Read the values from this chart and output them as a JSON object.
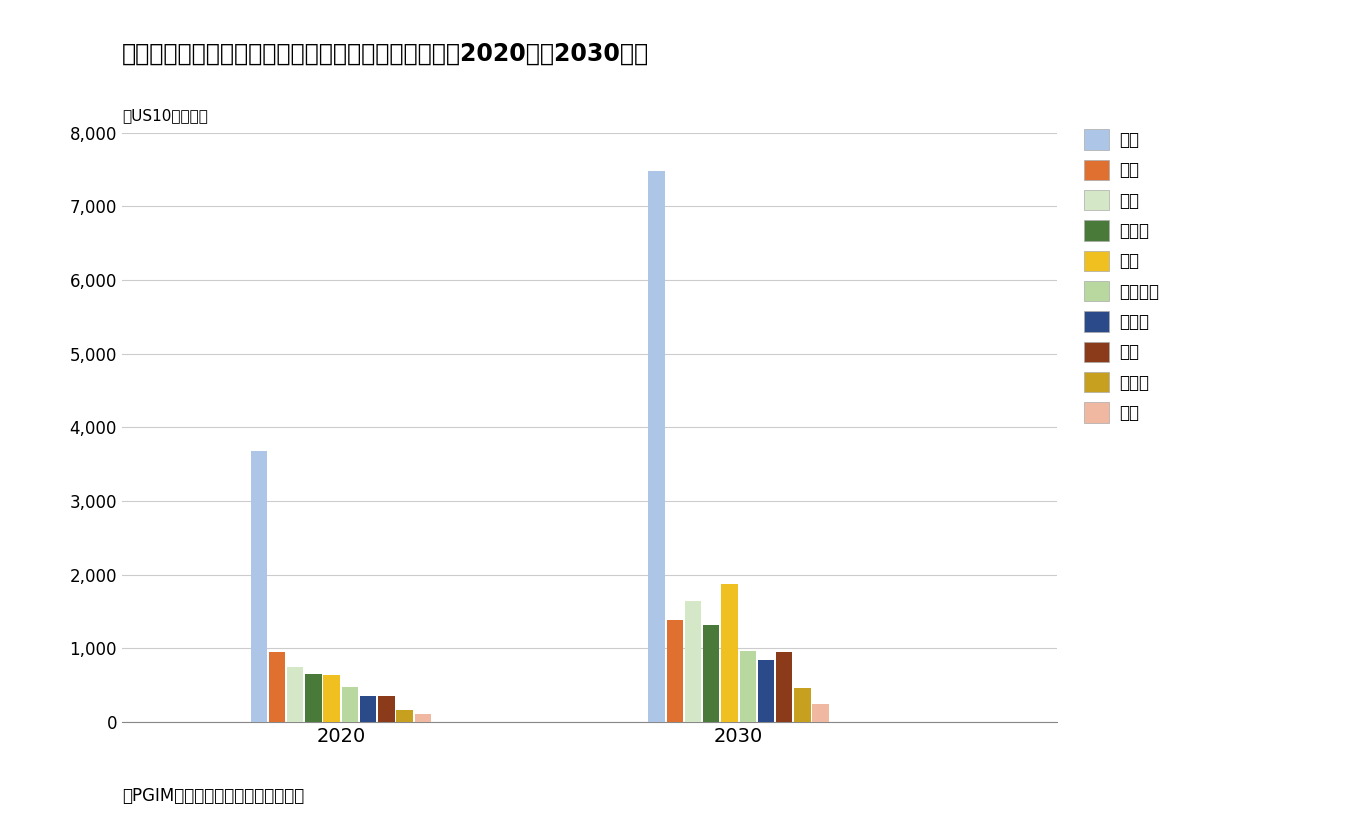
{
  "title": "図表３：各国内の機関投賄家の不動産保有額（国別、2020年・2030年）",
  "ylabel": "（US10億ドル）",
  "source_note": "（PGIMのデータより筆者にて作成）",
  "years": [
    "2020",
    "2030"
  ],
  "countries": [
    "米国",
    "日本",
    "英国",
    "ドイツ",
    "中国",
    "フランス",
    "カナダ",
    "豪州",
    "インド",
    "韓国"
  ],
  "colors": [
    "#adc6e8",
    "#e07030",
    "#d4e8c8",
    "#4a7a3a",
    "#f0c020",
    "#b8d8a0",
    "#2a4a8a",
    "#8b3a1a",
    "#c8a020",
    "#f0b8a0"
  ],
  "values_2020": [
    3680,
    950,
    750,
    650,
    640,
    480,
    360,
    360,
    160,
    110
  ],
  "values_2030": [
    7480,
    1380,
    1650,
    1320,
    1880,
    960,
    840,
    950,
    460,
    240
  ],
  "ylim": [
    0,
    8000
  ],
  "yticks": [
    0,
    1000,
    2000,
    3000,
    4000,
    5000,
    6000,
    7000,
    8000
  ],
  "background_color": "#ffffff",
  "grid_color": "#cccccc"
}
